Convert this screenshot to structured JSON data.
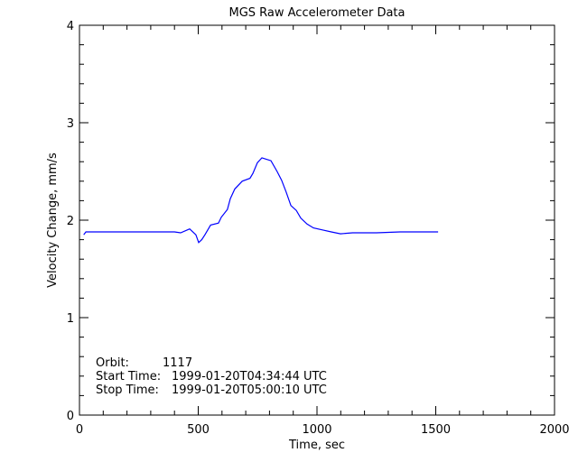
{
  "chart_data": {
    "type": "line",
    "title": "MGS Raw Accelerometer Data",
    "xlabel": "Time, sec",
    "ylabel": "Velocity Change, mm/s",
    "xlim": [
      0,
      2000
    ],
    "ylim": [
      0,
      4
    ],
    "x_ticks": [
      0,
      500,
      1000,
      1500,
      2000
    ],
    "y_ticks": [
      0,
      1,
      2,
      3,
      4
    ],
    "grid": false,
    "line_color": "#0000ff",
    "axis_color": "#000000",
    "series": [
      {
        "x": [
          18,
          27,
          60,
          120,
          200,
          300,
          400,
          426,
          464,
          490,
          502,
          515,
          528,
          552,
          585,
          597,
          623,
          635,
          654,
          685,
          718,
          730,
          749,
          768,
          806,
          832,
          851,
          870,
          890,
          913,
          932,
          958,
          985,
          1023,
          1060,
          1099,
          1150,
          1250,
          1350,
          1450,
          1510
        ],
        "y": [
          1.85,
          1.88,
          1.88,
          1.88,
          1.88,
          1.88,
          1.88,
          1.87,
          1.91,
          1.85,
          1.77,
          1.8,
          1.85,
          1.95,
          1.97,
          2.03,
          2.11,
          2.22,
          2.32,
          2.4,
          2.43,
          2.48,
          2.59,
          2.64,
          2.61,
          2.5,
          2.41,
          2.29,
          2.15,
          2.1,
          2.02,
          1.96,
          1.92,
          1.9,
          1.88,
          1.86,
          1.87,
          1.87,
          1.88,
          1.88,
          1.88
        ]
      }
    ],
    "annotations": [
      {
        "label": "Orbit:",
        "value": "1117"
      },
      {
        "label": "Start Time:",
        "value": "1999-01-20T04:34:44 UTC"
      },
      {
        "label": "Stop Time:",
        "value": "1999-01-20T05:00:10 UTC"
      }
    ]
  }
}
